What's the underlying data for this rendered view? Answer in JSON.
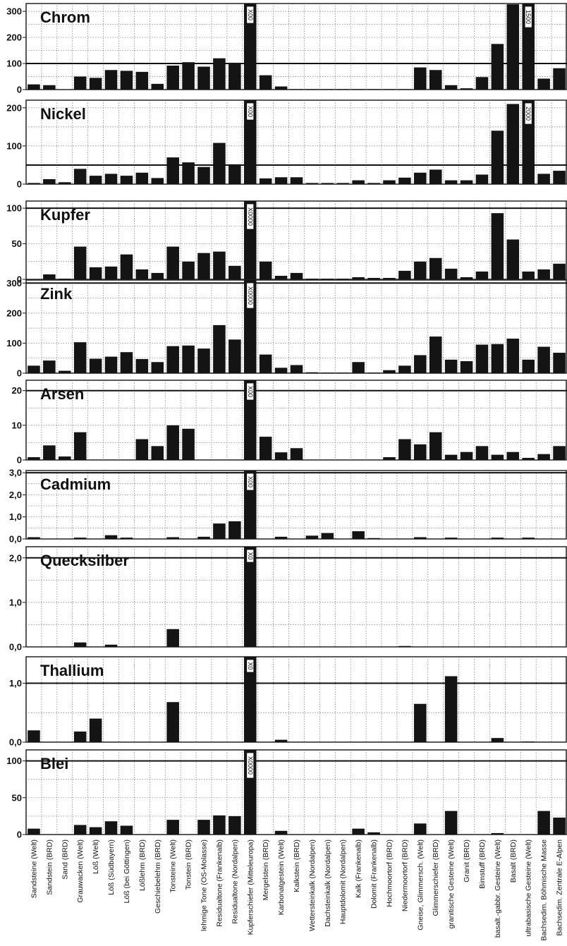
{
  "chart_data": {
    "type": "bar",
    "categories": [
      "Sandsteine (Welt)",
      "Sandstein (BRD)",
      "Sand (BRD)",
      "Grauwacken (Welt)",
      "Löß (Welt)",
      "Löß (Südbayern)",
      "Löß (bei Göttingen)",
      "Lößlehm (BRD)",
      "Geschiebelehm (BRD)",
      "Tonsteine (Welt)",
      "Tonstein (BRD)",
      "lehmige Tone (OS-Molasse)",
      "Residualtone (Frankenalb)",
      "Residualtone (Nordalpen)",
      "Kupferschiefer (Mitteleuropa)",
      "Mergelstein (BRD)",
      "Karbonatgestein (Welt)",
      "Kalkstein (BRD)",
      "Wettersteinkalk (Nordalpen)",
      "Dachsteinkalk (Nordalpen)",
      "Hauptdolomit (Nordalpen)",
      "Kalk (Frankenalb)",
      "Dolomit (Frankenalb)",
      "Hochmoortorf (BRD)",
      "Niedermoortorf (BRD)",
      "Gneise, Glimmersch. (Welt)",
      "Glimmerschiefer (BRD)",
      "granitische Gesteine (Welt)",
      "Granit (BRD)",
      "Bimstuff (BRD)",
      "basalt.-gabbr. Gesteine (Welt)",
      "Basalt (BRD)",
      "ultrabasische Gesteine (Welt)",
      "Bachsedim. Böhmische Masse",
      "Bachsedim. Zentrale E-Alpen"
    ],
    "panels": [
      {
        "title": "Chrom",
        "ylim": [
          0,
          330
        ],
        "ticks": [
          {
            "v": 0,
            "t": "0"
          },
          {
            "v": 100,
            "t": "100"
          },
          {
            "v": 200,
            "t": "200"
          },
          {
            "v": 300,
            "t": "300"
          }
        ],
        "ref": 100,
        "values": [
          20,
          17,
          0,
          50,
          45,
          75,
          72,
          68,
          22,
          92,
          105,
          88,
          120,
          103,
          330,
          55,
          12,
          2,
          2,
          2,
          2,
          2,
          2,
          2,
          2,
          85,
          75,
          17,
          5,
          48,
          175,
          327,
          330,
          42,
          82
        ],
        "caps": [
          {
            "index": 14,
            "label": "X00"
          },
          {
            "index": 32,
            "label": "1500"
          }
        ]
      },
      {
        "title": "Nickel",
        "ylim": [
          0,
          220
        ],
        "ticks": [
          {
            "v": 0,
            "t": "0"
          },
          {
            "v": 100,
            "t": "100"
          },
          {
            "v": 200,
            "t": "200"
          }
        ],
        "ref": 50,
        "values": [
          3,
          13,
          5,
          40,
          22,
          27,
          22,
          30,
          16,
          70,
          57,
          45,
          108,
          52,
          220,
          15,
          18,
          18,
          3,
          3,
          3,
          10,
          3,
          10,
          17,
          30,
          38,
          10,
          10,
          25,
          140,
          210,
          220,
          27,
          35
        ],
        "caps": [
          {
            "index": 14,
            "label": "X00"
          },
          {
            "index": 32,
            "label": "2000"
          }
        ]
      },
      {
        "title": "Kupfer",
        "ylim": [
          0,
          110
        ],
        "ticks": [
          {
            "v": 0,
            "t": "0"
          },
          {
            "v": 50,
            "t": "50"
          },
          {
            "v": 100,
            "t": "100"
          }
        ],
        "ref": 100,
        "values": [
          0,
          7,
          1,
          46,
          17,
          18,
          35,
          14,
          9,
          46,
          25,
          37,
          39,
          19,
          110,
          25,
          5,
          9,
          1,
          1,
          1,
          3,
          2,
          2,
          12,
          25,
          30,
          15,
          3,
          11,
          93,
          56,
          11,
          14,
          22
        ],
        "caps": [
          {
            "index": 14,
            "label": "X0000"
          }
        ]
      },
      {
        "title": "Zink",
        "ylim": [
          0,
          310
        ],
        "ticks": [
          {
            "v": 0,
            "t": "0"
          },
          {
            "v": 100,
            "t": "100"
          },
          {
            "v": 200,
            "t": "200"
          },
          {
            "v": 300,
            "t": "300"
          }
        ],
        "ref": 300,
        "values": [
          25,
          42,
          8,
          103,
          48,
          55,
          70,
          47,
          37,
          90,
          92,
          82,
          160,
          112,
          310,
          62,
          18,
          27,
          3,
          2,
          2,
          37,
          2,
          10,
          25,
          60,
          122,
          45,
          40,
          95,
          97,
          115,
          45,
          88,
          68
        ],
        "caps": [
          {
            "index": 14,
            "label": "X0000"
          }
        ]
      },
      {
        "title": "Arsen",
        "ylim": [
          0,
          23
        ],
        "ticks": [
          {
            "v": 0,
            "t": "0"
          },
          {
            "v": 10,
            "t": "10"
          },
          {
            "v": 20,
            "t": "20"
          }
        ],
        "ref": 20,
        "values": [
          0.8,
          4.2,
          1,
          8,
          0,
          0,
          0,
          6,
          4,
          10,
          9,
          0,
          0,
          0,
          23,
          6.7,
          2.2,
          3.4,
          0,
          0,
          0,
          0,
          0,
          0.8,
          6,
          4.5,
          8,
          1.5,
          2.3,
          4,
          1.5,
          2.3,
          0.6,
          1.7,
          4
        ],
        "caps": [
          {
            "index": 14,
            "label": "X00"
          }
        ]
      },
      {
        "title": "Cadmium",
        "ylim": [
          0,
          3.1
        ],
        "ticks": [
          {
            "v": 0,
            "t": "0,0"
          },
          {
            "v": 1,
            "t": "1,0"
          },
          {
            "v": 2,
            "t": "2,0"
          },
          {
            "v": 3,
            "t": "3,0"
          }
        ],
        "ref": 3.0,
        "values": [
          0.08,
          0,
          0,
          0.06,
          0,
          0.17,
          0.06,
          0,
          0,
          0.08,
          0,
          0.1,
          0.7,
          0.8,
          3.1,
          0,
          0.1,
          0,
          0.15,
          0.27,
          0,
          0.35,
          0.04,
          0,
          0,
          0.08,
          0,
          0.06,
          0,
          0,
          0.06,
          0,
          0.06,
          0,
          0
        ],
        "caps": [
          {
            "index": 14,
            "label": "X00"
          }
        ]
      },
      {
        "title": "Quecksilber",
        "ylim": [
          0,
          2.25
        ],
        "ticks": [
          {
            "v": 0,
            "t": "0,0"
          },
          {
            "v": 1,
            "t": "1,0"
          },
          {
            "v": 2,
            "t": "2,0"
          }
        ],
        "ref": 2.0,
        "values": [
          0,
          0,
          0,
          0.1,
          0,
          0.05,
          0,
          0,
          0,
          0.4,
          0,
          0,
          0,
          0,
          2.25,
          0,
          0,
          0,
          0,
          0,
          0,
          0,
          0,
          0,
          0.02,
          0,
          0,
          0,
          0,
          0,
          0,
          0,
          0,
          0,
          0
        ],
        "caps": [
          {
            "index": 14,
            "label": "X0"
          }
        ]
      },
      {
        "title": "Thallium",
        "ylim": [
          0,
          1.45
        ],
        "ticks": [
          {
            "v": 0,
            "t": "0,0"
          },
          {
            "v": 1,
            "t": "1,0"
          }
        ],
        "ref": 1.0,
        "values": [
          0.2,
          0,
          0,
          0.18,
          0.4,
          0,
          0,
          0,
          0,
          0.68,
          0,
          0,
          0,
          0,
          1.45,
          0,
          0.04,
          0,
          0,
          0,
          0,
          0,
          0,
          0,
          0,
          0.65,
          0,
          1.12,
          0,
          0,
          0.07,
          0,
          0.01,
          0,
          0
        ],
        "caps": [
          {
            "index": 14,
            "label": "X0"
          }
        ]
      },
      {
        "title": "Blei",
        "ylim": [
          0,
          115
        ],
        "ticks": [
          {
            "v": 0,
            "t": "0"
          },
          {
            "v": 50,
            "t": "50"
          },
          {
            "v": 100,
            "t": "100"
          }
        ],
        "ref": 100,
        "values": [
          8,
          0,
          0,
          13,
          10,
          18,
          12,
          0,
          0,
          20,
          0,
          20,
          26,
          25,
          115,
          0,
          5,
          0,
          0,
          0,
          0,
          8,
          3,
          0,
          0,
          15,
          0,
          32,
          0,
          0,
          2,
          0,
          0,
          32,
          23
        ],
        "caps": [
          {
            "index": 14,
            "label": "X0000"
          }
        ]
      }
    ]
  }
}
